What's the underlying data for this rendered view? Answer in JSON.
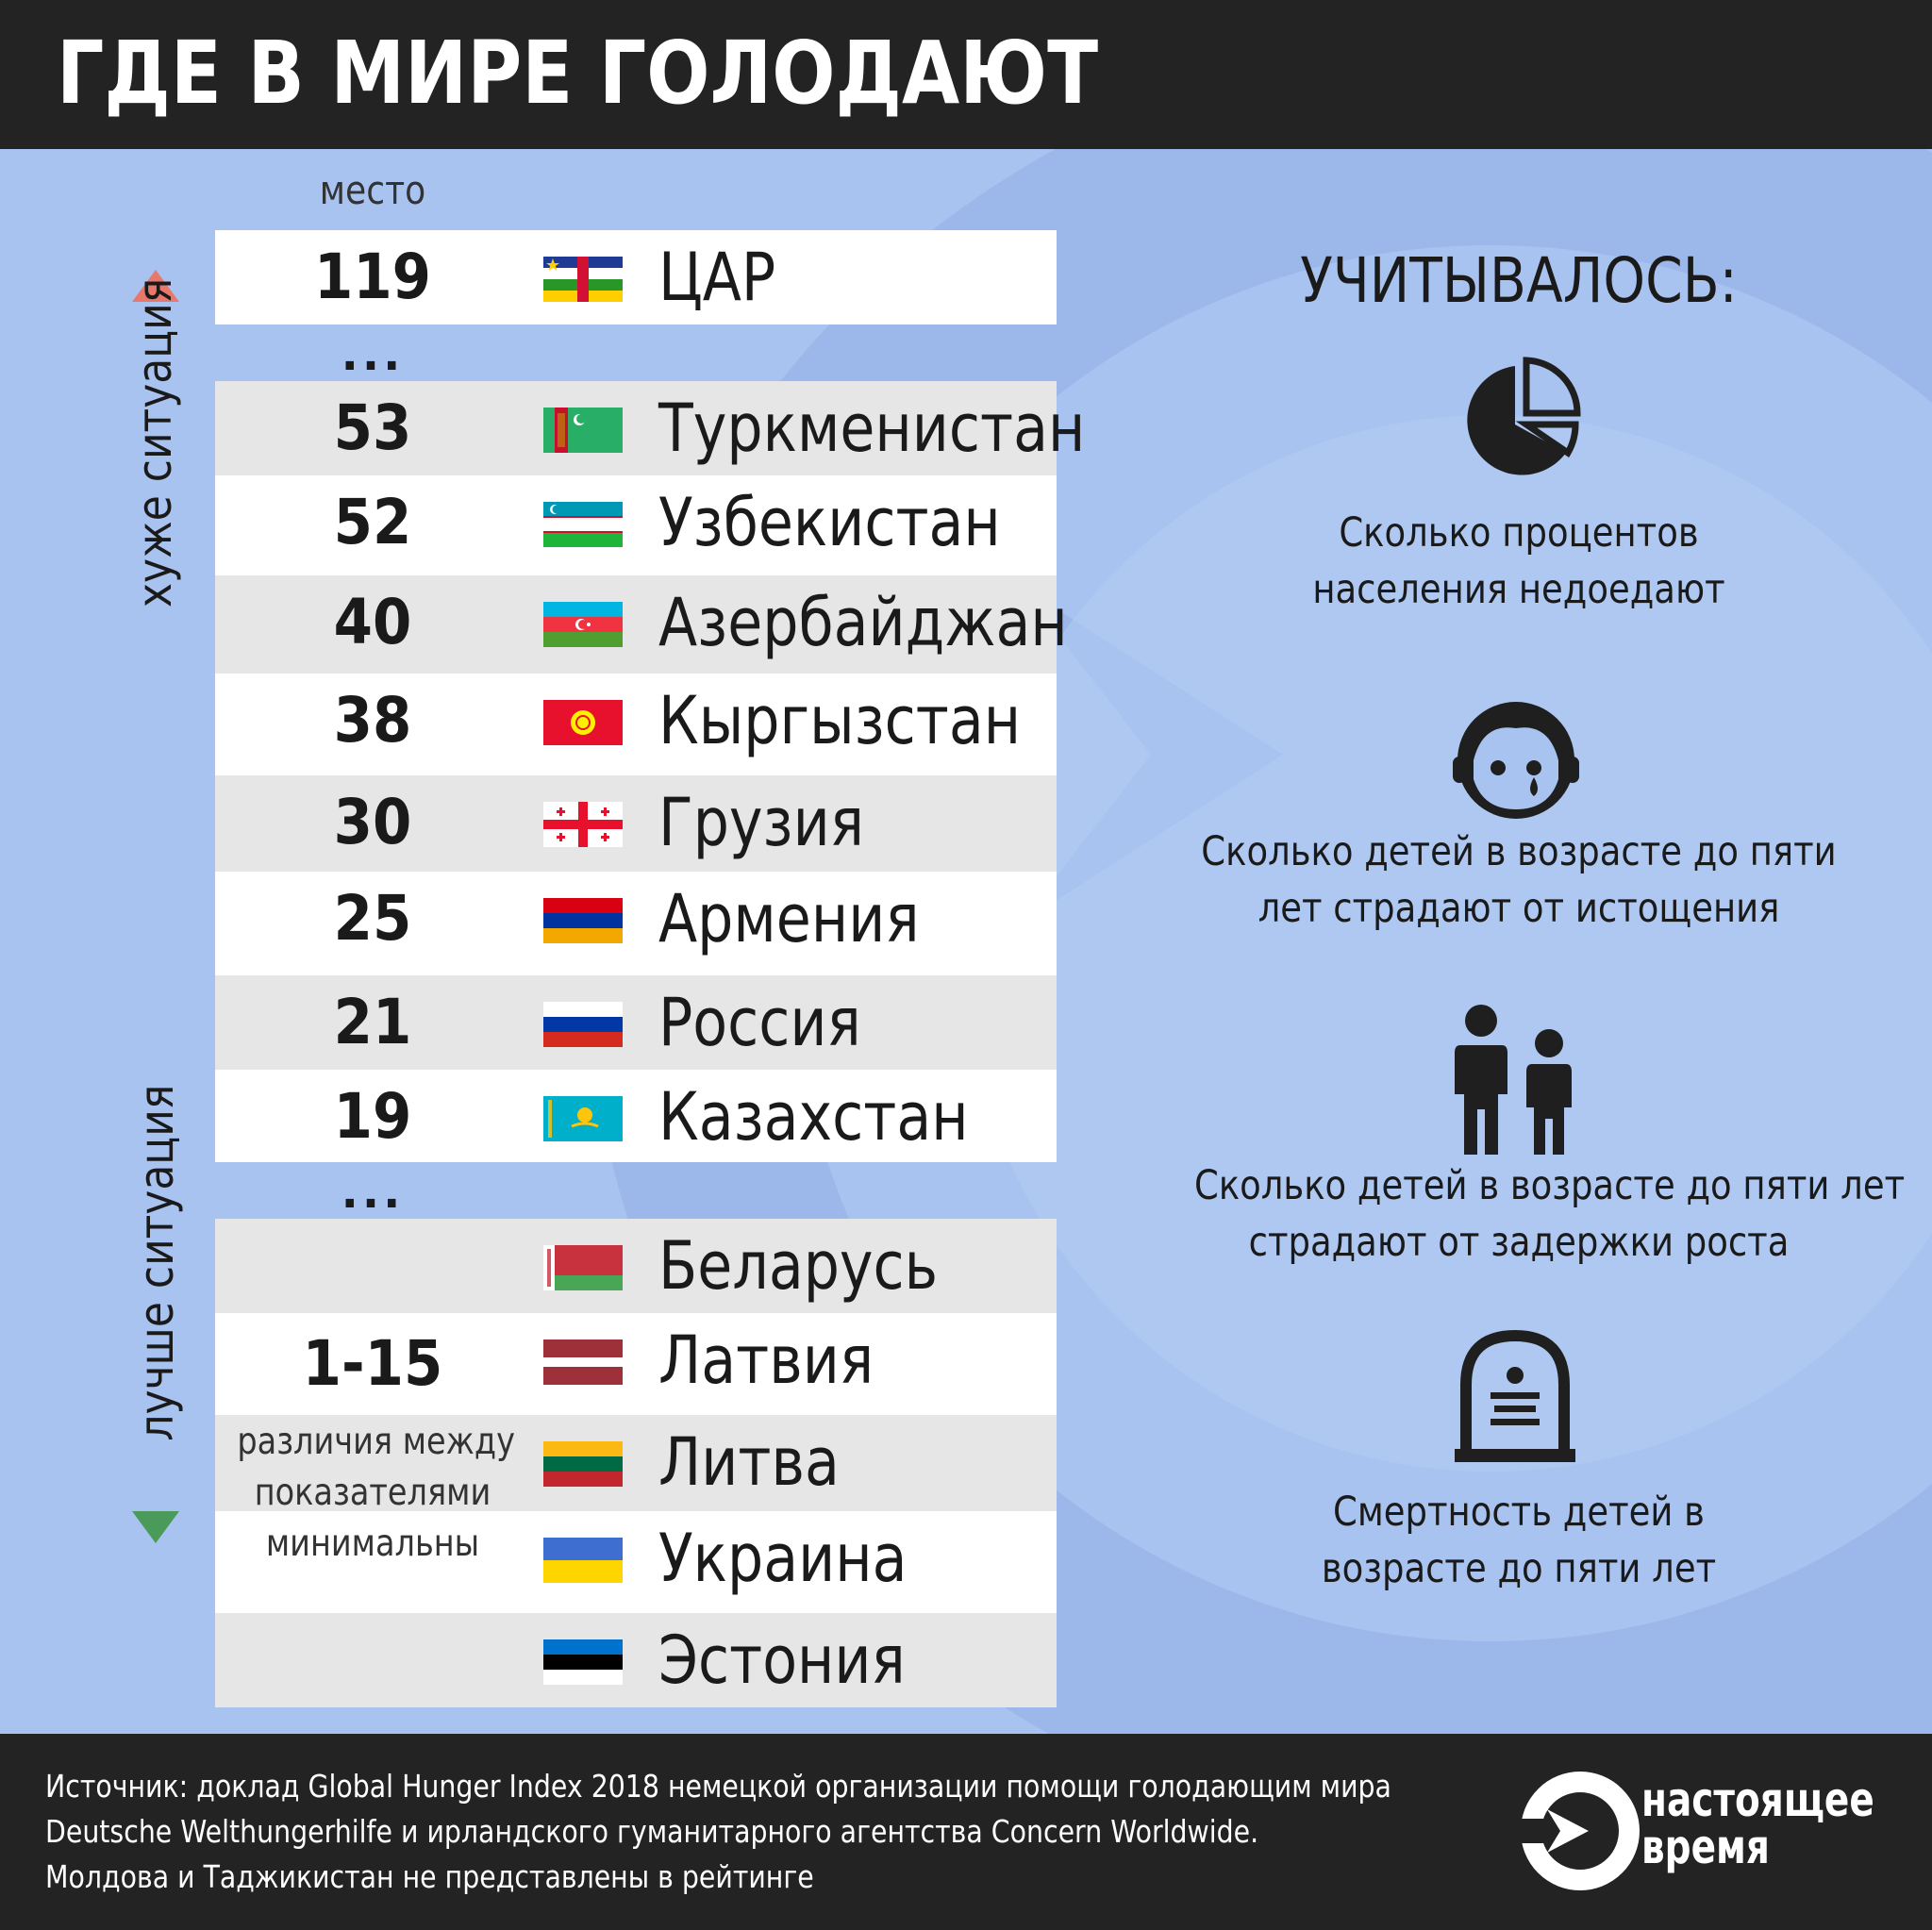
{
  "title": "ГДЕ В МИРЕ ГОЛОДАЮТ",
  "rank_header": "место",
  "labels": {
    "worse": "хуже ситуация",
    "better": "лучше ситуация"
  },
  "dots": "...",
  "top_rows": [
    {
      "rank": "119",
      "country": "ЦАР",
      "flag": "car-flag"
    },
    {
      "rank": "53",
      "country": "Туркменистан",
      "flag": "turkmenistan-flag"
    },
    {
      "rank": "52",
      "country": "Узбекистан",
      "flag": "uzbekistan-flag"
    },
    {
      "rank": "40",
      "country": "Азербайджан",
      "flag": "azerbaijan-flag"
    },
    {
      "rank": "38",
      "country": "Кыргызстан",
      "flag": "kyrgyzstan-flag"
    },
    {
      "rank": "30",
      "country": "Грузия",
      "flag": "georgia-flag"
    },
    {
      "rank": "25",
      "country": "Армения",
      "flag": "armenia-flag"
    },
    {
      "rank": "21",
      "country": "Россия",
      "flag": "russia-flag"
    },
    {
      "rank": "19",
      "country": "Казахстан",
      "flag": "kazakhstan-flag"
    }
  ],
  "range_group": {
    "rank": "1-15",
    "note_lines": [
      "различия между",
      "показателями",
      "минимальны"
    ],
    "countries": [
      {
        "country": "Беларусь",
        "flag": "belarus-flag"
      },
      {
        "country": "Латвия",
        "flag": "latvia-flag"
      },
      {
        "country": "Литва",
        "flag": "lithuania-flag"
      },
      {
        "country": "Украина",
        "flag": "ukraine-flag"
      },
      {
        "country": "Эстония",
        "flag": "estonia-flag"
      }
    ]
  },
  "criteria": {
    "title": "УЧИТЫВАЛОСЬ:",
    "items": [
      {
        "icon": "pie-chart-icon",
        "lines": [
          "Сколько процентов",
          "населения недоедают"
        ]
      },
      {
        "icon": "crying-child-icon",
        "lines": [
          "Сколько детей в возрасте до пяти",
          "лет страдают от истощения"
        ]
      },
      {
        "icon": "children-icon",
        "lines": [
          "Сколько детей в возрасте до пяти лет",
          "страдают от задержки роста"
        ]
      },
      {
        "icon": "gravestone-icon",
        "lines": [
          "Смертность детей в",
          "возрасте до пяти лет"
        ]
      }
    ]
  },
  "footer": {
    "source_lines": [
      "Источник: доклад Global Hunger Index 2018 немецкой организации помощи голодающим мира",
      "Deutsche Welthungerhilfe и ирландского гуманитарного агентства Concern Worldwide.",
      "Молдова и Таджикистан не представлены в рейтинге"
    ],
    "logo_lines": [
      "настоящее",
      "время"
    ]
  },
  "colors": {
    "header": "#232323",
    "background": "#a9c3f0",
    "row_light": "#ffffff",
    "row_gray": "#e6e6e6",
    "up_arrow": "#e8786c",
    "down_arrow": "#4a9a5a"
  }
}
